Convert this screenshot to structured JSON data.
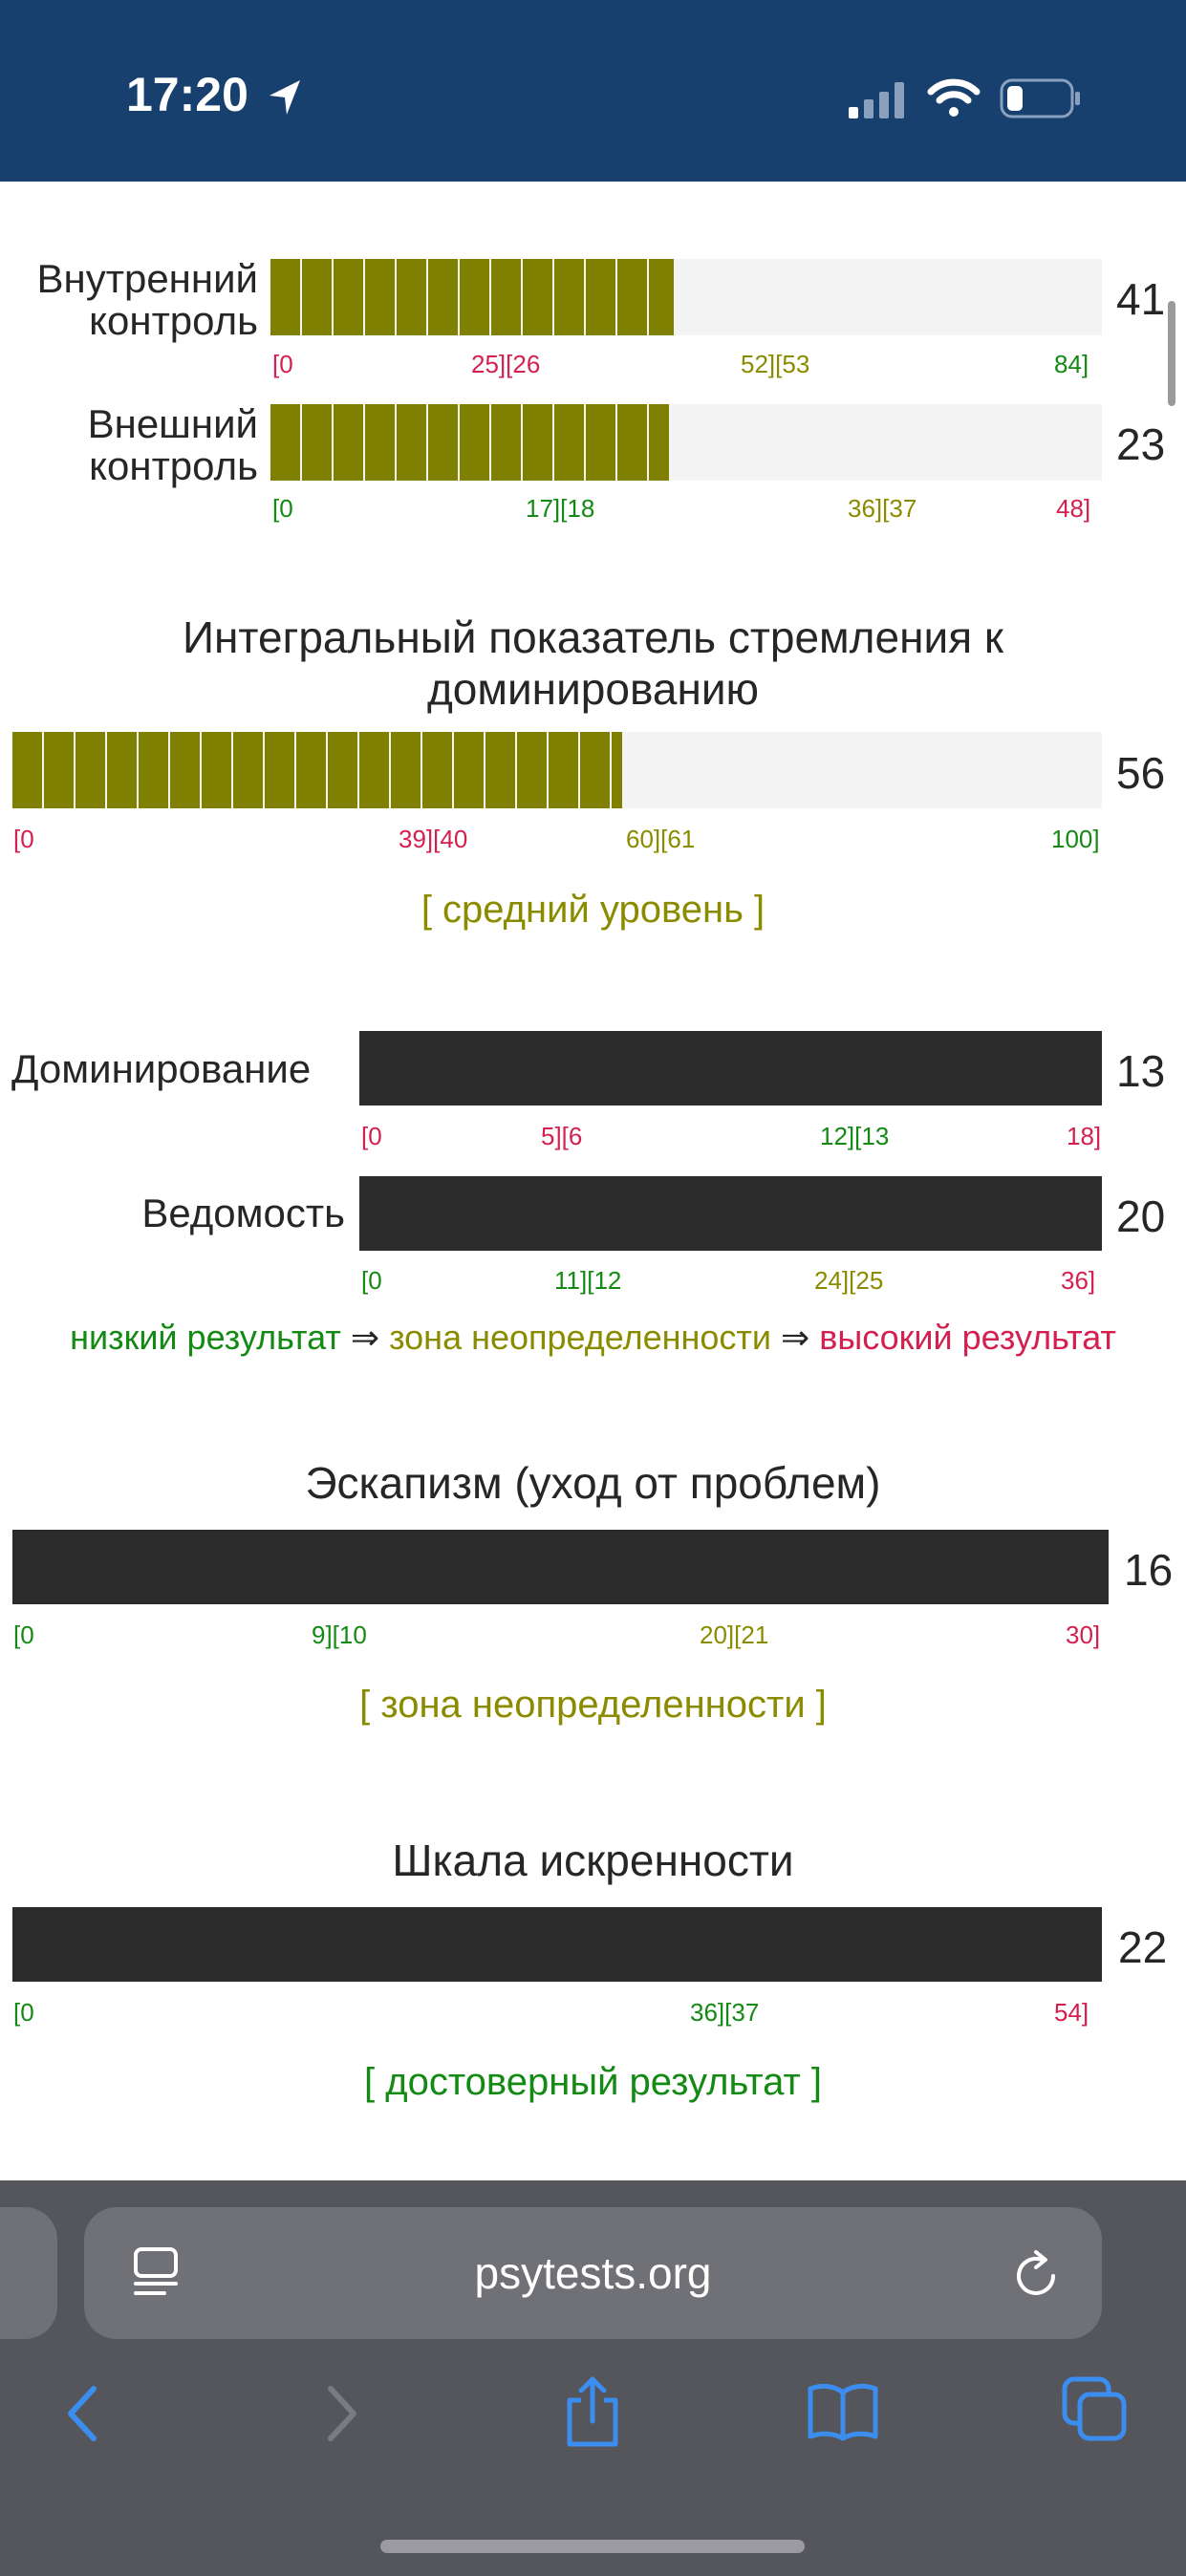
{
  "status": {
    "time": "17:20"
  },
  "scales": [
    {
      "label_lines": [
        "Внутренний",
        "контроль"
      ],
      "score": "41",
      "fill_fraction": 0.48,
      "ticks": [
        "[0",
        "25][26",
        "52][53",
        "84]"
      ]
    },
    {
      "label_lines": [
        "Внешний",
        "контроль"
      ],
      "score": "23",
      "fill_fraction": 0.48,
      "ticks": [
        "[0",
        "17][18",
        "36][37",
        "48]"
      ]
    }
  ],
  "integral": {
    "title": "Интегральный показатель стремления к доминированию",
    "score": "56",
    "fill_fraction": 0.56,
    "ticks": [
      "[0",
      "39][40",
      "60][61",
      "100]"
    ],
    "verdict": "[ средний уровень ]"
  },
  "dom_scales": [
    {
      "label": "Доминирование",
      "score": "13",
      "ticks": [
        "[0",
        "5][6",
        "12][13",
        "18]"
      ]
    },
    {
      "label": "Ведомость",
      "score": "20",
      "ticks": [
        "[0",
        "11][12",
        "24][25",
        "36]"
      ]
    }
  ],
  "legend": {
    "low": "низкий результат",
    "arrow": "⇒",
    "mid": "зона неопределенности",
    "high": "высокий результат"
  },
  "escapism": {
    "title": "Эскапизм (уход от проблем)",
    "score": "16",
    "ticks": [
      "[0",
      "9][10",
      "20][21",
      "30]"
    ],
    "verdict": "[ зона неопределенности ]"
  },
  "sincerity": {
    "title": "Шкала искренности",
    "score": "22",
    "ticks": [
      "[0",
      "36][37",
      "54]"
    ],
    "verdict": "[ достоверный результат ]"
  },
  "browser": {
    "url": "psytests.org"
  },
  "colors": {
    "status_bar": "#17406e",
    "fill": "#808000",
    "dark_bar": "#2b2b2b",
    "red": "#d4204f",
    "olive": "#8b8b00",
    "green": "#138a13",
    "toolbar": "#55565b",
    "ios_blue": "#3b8ef0"
  },
  "icons": [
    "location-arrow-icon",
    "cellular-signal-icon",
    "wifi-icon",
    "battery-icon",
    "reader-icon",
    "reload-icon",
    "back-icon",
    "forward-icon",
    "share-icon",
    "bookmarks-icon",
    "tabs-icon"
  ]
}
